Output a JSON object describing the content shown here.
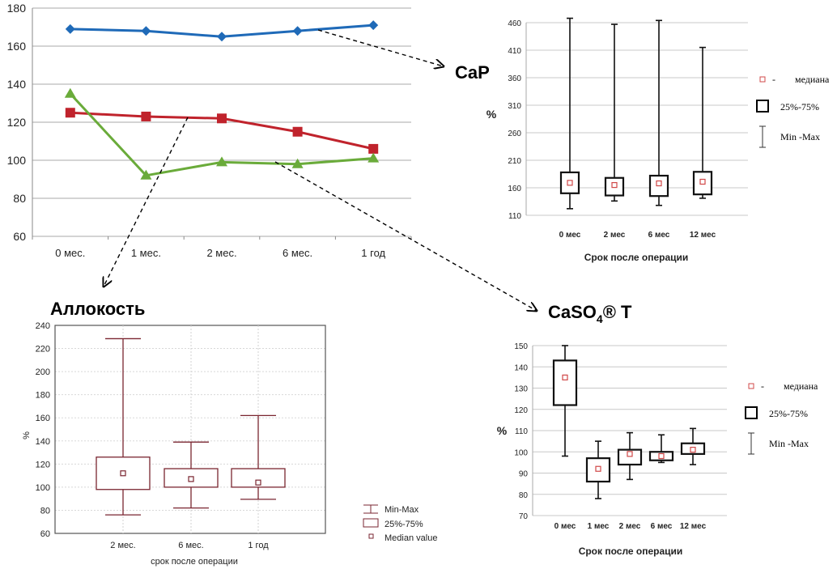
{
  "chart_data": [
    {
      "id": "summary-line",
      "type": "line",
      "title": "",
      "xlabel": "",
      "ylabel": "",
      "categories": [
        "0 мес.",
        "1 мес.",
        "2 мес.",
        "6 мес.",
        "1 год"
      ],
      "ylim": [
        60,
        180
      ],
      "yticks": [
        60,
        80,
        100,
        120,
        140,
        160,
        180
      ],
      "grid": true,
      "series": [
        {
          "name": "CaP",
          "color": "#1f6ab8",
          "marker": "diamond",
          "values": [
            169,
            168,
            165,
            168,
            171
          ]
        },
        {
          "name": "Аллокость",
          "color": "#c0232c",
          "marker": "square",
          "values": [
            125,
            123,
            122,
            115,
            106
          ]
        },
        {
          "name": "CaSO4® T",
          "color": "#6aab3a",
          "marker": "triangle",
          "values": [
            135,
            92,
            99,
            98,
            101
          ]
        }
      ]
    },
    {
      "id": "cap-box",
      "type": "box",
      "title": "CaP",
      "xlabel": "Срок после операции",
      "ylabel": "%",
      "categories": [
        "0 мес",
        "2 мес",
        "6 мес",
        "12 мес"
      ],
      "ylim": [
        110,
        460
      ],
      "yticks": [
        110,
        160,
        210,
        260,
        310,
        360,
        410,
        460
      ],
      "grid": true,
      "min": [
        122,
        136,
        128,
        141
      ],
      "q1": [
        150,
        146,
        145,
        148
      ],
      "median": [
        169,
        165,
        168,
        171
      ],
      "q3": [
        188,
        178,
        182,
        189
      ],
      "max": [
        468,
        457,
        464,
        415
      ],
      "legend": {
        "placement": "right",
        "median": "медиана",
        "box": "25%-75%",
        "whisker": "Min -Max"
      }
    },
    {
      "id": "allokost-box",
      "type": "box",
      "title": "Аллокость",
      "xlabel": "срок после операции",
      "ylabel": "%",
      "categories": [
        "2 мес.",
        "6 мес.",
        "1 год"
      ],
      "ylim": [
        60,
        240
      ],
      "yticks": [
        60,
        80,
        100,
        120,
        140,
        160,
        180,
        200,
        220,
        240
      ],
      "grid": true,
      "min": [
        76,
        82,
        89.5
      ],
      "q1": [
        98,
        100,
        100
      ],
      "median": [
        112,
        107,
        104
      ],
      "q3": [
        126,
        116,
        116
      ],
      "max": [
        228.5,
        139,
        162
      ],
      "legend": {
        "placement": "bottom-right",
        "whisker": "Min-Max",
        "box": "25%-75%",
        "median": "Median value"
      }
    },
    {
      "id": "caso4-box",
      "type": "box",
      "title": "CaSO",
      "title_sub": "4",
      "title_suffix": "® T",
      "xlabel": "Срок после операции",
      "ylabel": "%",
      "categories": [
        "0 мес",
        "1 мес",
        "2 мес",
        "6 мес",
        "12 мес"
      ],
      "ylim": [
        70,
        150
      ],
      "yticks": [
        70,
        80,
        90,
        100,
        110,
        120,
        130,
        140,
        150
      ],
      "grid": true,
      "min": [
        98,
        78,
        87,
        95,
        94
      ],
      "q1": [
        122,
        86,
        94,
        96,
        99
      ],
      "median": [
        135,
        92,
        99,
        98,
        101
      ],
      "q3": [
        143,
        97,
        101,
        100,
        104
      ],
      "max": [
        150,
        105,
        109,
        108,
        111
      ],
      "legend": {
        "placement": "right",
        "median": "медиана",
        "box": "25%-75%",
        "whisker": "Min -Max"
      }
    }
  ]
}
